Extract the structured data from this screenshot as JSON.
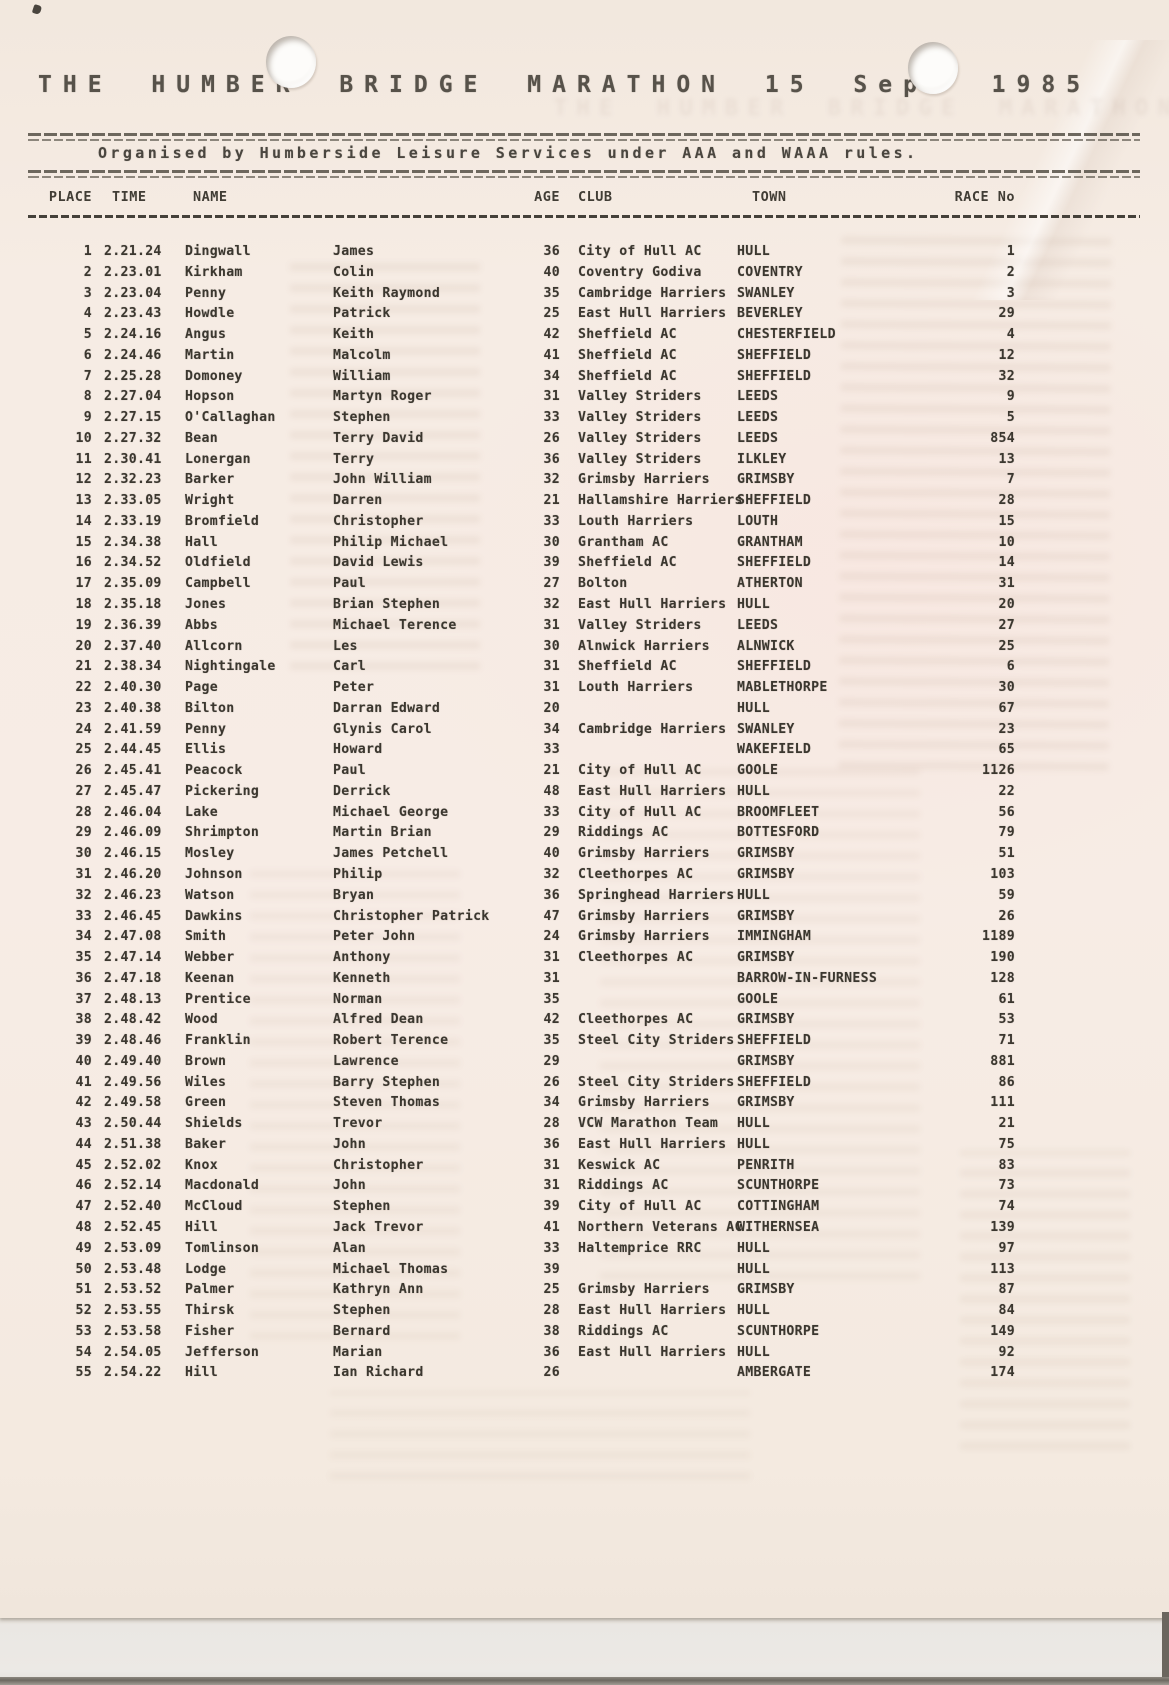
{
  "page": {
    "title": "THE HUMBER BRIDGE MARATHON 15 Sept 1985",
    "subtitle": "Organised by Humberside Leisure Services under AAA and WAAA rules."
  },
  "colors": {
    "paper": "#f6ece4",
    "ink": "#3b372f",
    "title_ink": "#57524a",
    "backdrop": "#e9e6e2"
  },
  "table": {
    "headers": {
      "place": "PLACE",
      "time": "TIME",
      "name": "NAME",
      "age": "AGE",
      "club": "CLUB",
      "town": "TOWN",
      "race_no": "RACE No"
    },
    "rows": [
      [
        "1",
        "2.21.24",
        "Dingwall",
        "James",
        "36",
        "City of Hull AC",
        "HULL",
        "1"
      ],
      [
        "2",
        "2.23.01",
        "Kirkham",
        "Colin",
        "40",
        "Coventry Godiva",
        "COVENTRY",
        "2"
      ],
      [
        "3",
        "2.23.04",
        "Penny",
        "Keith Raymond",
        "35",
        "Cambridge Harriers",
        "SWANLEY",
        "3"
      ],
      [
        "4",
        "2.23.43",
        "Howdle",
        "Patrick",
        "25",
        "East Hull Harriers",
        "BEVERLEY",
        "29"
      ],
      [
        "5",
        "2.24.16",
        "Angus",
        "Keith",
        "42",
        "Sheffield AC",
        "CHESTERFIELD",
        "4"
      ],
      [
        "6",
        "2.24.46",
        "Martin",
        "Malcolm",
        "41",
        "Sheffield AC",
        "SHEFFIELD",
        "12"
      ],
      [
        "7",
        "2.25.28",
        "Domoney",
        "William",
        "34",
        "Sheffield AC",
        "SHEFFIELD",
        "32"
      ],
      [
        "8",
        "2.27.04",
        "Hopson",
        "Martyn Roger",
        "31",
        "Valley Striders",
        "LEEDS",
        "9"
      ],
      [
        "9",
        "2.27.15",
        "O'Callaghan",
        "Stephen",
        "33",
        "Valley Striders",
        "LEEDS",
        "5"
      ],
      [
        "10",
        "2.27.32",
        "Bean",
        "Terry David",
        "26",
        "Valley Striders",
        "LEEDS",
        "854"
      ],
      [
        "11",
        "2.30.41",
        "Lonergan",
        "Terry",
        "36",
        "Valley Striders",
        "ILKLEY",
        "13"
      ],
      [
        "12",
        "2.32.23",
        "Barker",
        "John William",
        "32",
        "Grimsby Harriers",
        "GRIMSBY",
        "7"
      ],
      [
        "13",
        "2.33.05",
        "Wright",
        "Darren",
        "21",
        "Hallamshire Harriers",
        "SHEFFIELD",
        "28"
      ],
      [
        "14",
        "2.33.19",
        "Bromfield",
        "Christopher",
        "33",
        "Louth Harriers",
        "LOUTH",
        "15"
      ],
      [
        "15",
        "2.34.38",
        "Hall",
        "Philip Michael",
        "30",
        "Grantham AC",
        "GRANTHAM",
        "10"
      ],
      [
        "16",
        "2.34.52",
        "Oldfield",
        "David Lewis",
        "39",
        "Sheffield AC",
        "SHEFFIELD",
        "14"
      ],
      [
        "17",
        "2.35.09",
        "Campbell",
        "Paul",
        "27",
        "Bolton",
        "ATHERTON",
        "31"
      ],
      [
        "18",
        "2.35.18",
        "Jones",
        "Brian Stephen",
        "32",
        "East Hull Harriers",
        "HULL",
        "20"
      ],
      [
        "19",
        "2.36.39",
        "Abbs",
        "Michael Terence",
        "31",
        "Valley Striders",
        "LEEDS",
        "27"
      ],
      [
        "20",
        "2.37.40",
        "Allcorn",
        "Les",
        "30",
        "Alnwick Harriers",
        "ALNWICK",
        "25"
      ],
      [
        "21",
        "2.38.34",
        "Nightingale",
        "Carl",
        "31",
        "Sheffield AC",
        "SHEFFIELD",
        "6"
      ],
      [
        "22",
        "2.40.30",
        "Page",
        "Peter",
        "31",
        "Louth Harriers",
        "MABLETHORPE",
        "30"
      ],
      [
        "23",
        "2.40.38",
        "Bilton",
        "Darran Edward",
        "20",
        "",
        "HULL",
        "67"
      ],
      [
        "24",
        "2.41.59",
        "Penny",
        "Glynis Carol",
        "34",
        "Cambridge Harriers",
        "SWANLEY",
        "23"
      ],
      [
        "25",
        "2.44.45",
        "Ellis",
        "Howard",
        "33",
        "",
        "WAKEFIELD",
        "65"
      ],
      [
        "26",
        "2.45.41",
        "Peacock",
        "Paul",
        "21",
        "City of Hull AC",
        "GOOLE",
        "1126"
      ],
      [
        "27",
        "2.45.47",
        "Pickering",
        "Derrick",
        "48",
        "East Hull Harriers",
        "HULL",
        "22"
      ],
      [
        "28",
        "2.46.04",
        "Lake",
        "Michael George",
        "33",
        "City of Hull AC",
        "BROOMFLEET",
        "56"
      ],
      [
        "29",
        "2.46.09",
        "Shrimpton",
        "Martin Brian",
        "29",
        "Riddings AC",
        "BOTTESFORD",
        "79"
      ],
      [
        "30",
        "2.46.15",
        "Mosley",
        "James Petchell",
        "40",
        "Grimsby Harriers",
        "GRIMSBY",
        "51"
      ],
      [
        "31",
        "2.46.20",
        "Johnson",
        "Philip",
        "32",
        "Cleethorpes AC",
        "GRIMSBY",
        "103"
      ],
      [
        "32",
        "2.46.23",
        "Watson",
        "Bryan",
        "36",
        "Springhead Harriers",
        "HULL",
        "59"
      ],
      [
        "33",
        "2.46.45",
        "Dawkins",
        "Christopher Patrick",
        "47",
        "Grimsby Harriers",
        "GRIMSBY",
        "26"
      ],
      [
        "34",
        "2.47.08",
        "Smith",
        "Peter John",
        "24",
        "Grimsby Harriers",
        "IMMINGHAM",
        "1189"
      ],
      [
        "35",
        "2.47.14",
        "Webber",
        "Anthony",
        "31",
        "Cleethorpes AC",
        "GRIMSBY",
        "190"
      ],
      [
        "36",
        "2.47.18",
        "Keenan",
        "Kenneth",
        "31",
        "",
        "BARROW-IN-FURNESS",
        "128"
      ],
      [
        "37",
        "2.48.13",
        "Prentice",
        "Norman",
        "35",
        "",
        "GOOLE",
        "61"
      ],
      [
        "38",
        "2.48.42",
        "Wood",
        "Alfred Dean",
        "42",
        "Cleethorpes AC",
        "GRIMSBY",
        "53"
      ],
      [
        "39",
        "2.48.46",
        "Franklin",
        "Robert Terence",
        "35",
        "Steel City Striders",
        "SHEFFIELD",
        "71"
      ],
      [
        "40",
        "2.49.40",
        "Brown",
        "Lawrence",
        "29",
        "",
        "GRIMSBY",
        "881"
      ],
      [
        "41",
        "2.49.56",
        "Wiles",
        "Barry Stephen",
        "26",
        "Steel City Striders",
        "SHEFFIELD",
        "86"
      ],
      [
        "42",
        "2.49.58",
        "Green",
        "Steven Thomas",
        "34",
        "Grimsby Harriers",
        "GRIMSBY",
        "111"
      ],
      [
        "43",
        "2.50.44",
        "Shields",
        "Trevor",
        "28",
        "VCW Marathon Team",
        "HULL",
        "21"
      ],
      [
        "44",
        "2.51.38",
        "Baker",
        "John",
        "36",
        "East Hull Harriers",
        "HULL",
        "75"
      ],
      [
        "45",
        "2.52.02",
        "Knox",
        "Christopher",
        "31",
        "Keswick AC",
        "PENRITH",
        "83"
      ],
      [
        "46",
        "2.52.14",
        "Macdonald",
        "John",
        "31",
        "Riddings AC",
        "SCUNTHORPE",
        "73"
      ],
      [
        "47",
        "2.52.40",
        "McCloud",
        "Stephen",
        "39",
        "City of Hull AC",
        "COTTINGHAM",
        "74"
      ],
      [
        "48",
        "2.52.45",
        "Hill",
        "Jack Trevor",
        "41",
        "Northern Veterans AC",
        "WITHERNSEA",
        "139"
      ],
      [
        "49",
        "2.53.09",
        "Tomlinson",
        "Alan",
        "33",
        "Haltemprice RRC",
        "HULL",
        "97"
      ],
      [
        "50",
        "2.53.48",
        "Lodge",
        "Michael Thomas",
        "39",
        "",
        "HULL",
        "113"
      ],
      [
        "51",
        "2.53.52",
        "Palmer",
        "Kathryn Ann",
        "25",
        "Grimsby Harriers",
        "GRIMSBY",
        "87"
      ],
      [
        "52",
        "2.53.55",
        "Thirsk",
        "Stephen",
        "28",
        "East Hull Harriers",
        "HULL",
        "84"
      ],
      [
        "53",
        "2.53.58",
        "Fisher",
        "Bernard",
        "38",
        "Riddings AC",
        "SCUNTHORPE",
        "149"
      ],
      [
        "54",
        "2.54.05",
        "Jefferson",
        "Marian",
        "36",
        "East Hull Harriers",
        "HULL",
        "92"
      ],
      [
        "55",
        "2.54.22",
        "Hill",
        "Ian Richard",
        "26",
        "",
        "AMBERGATE",
        "174"
      ]
    ]
  }
}
